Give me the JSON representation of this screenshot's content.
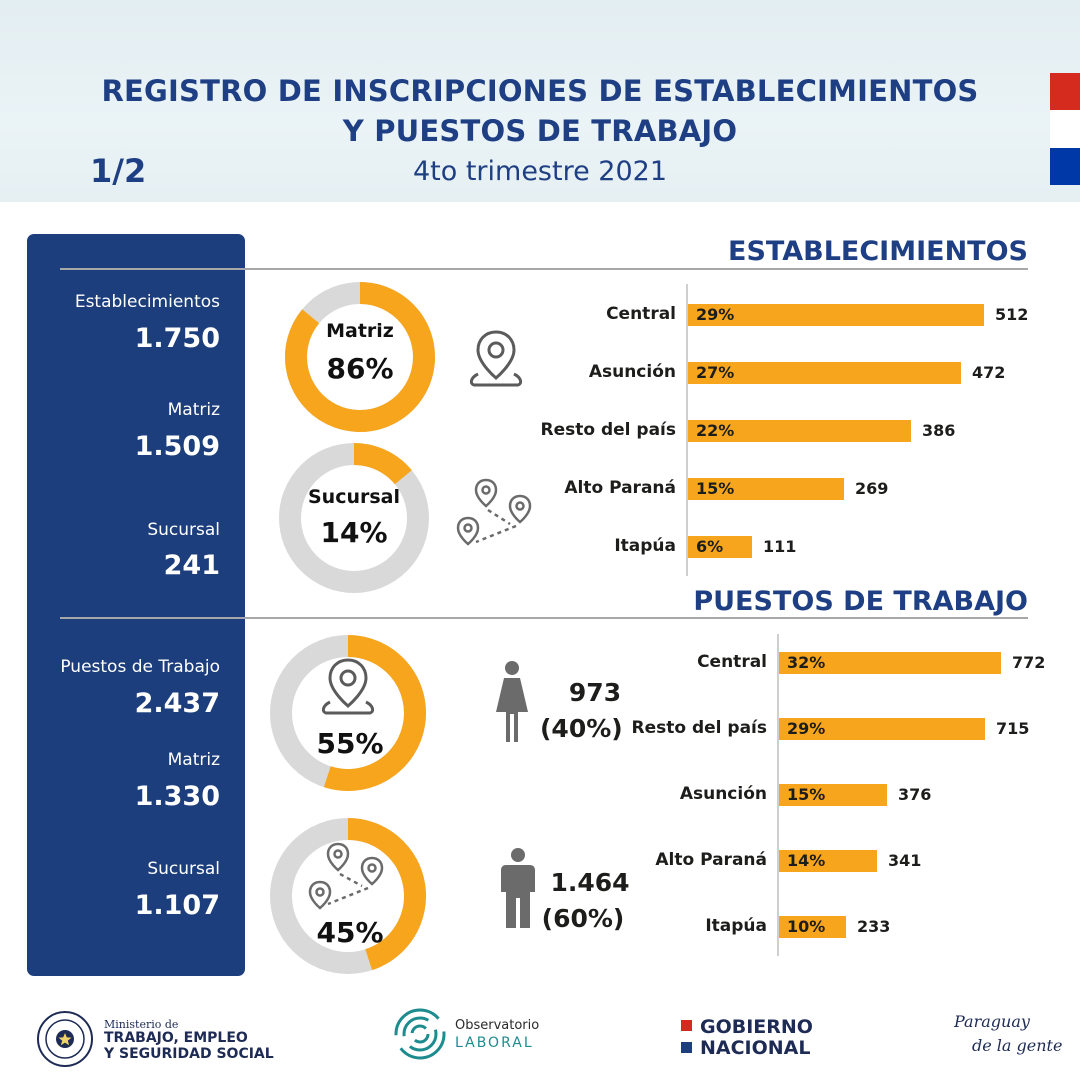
{
  "header": {
    "title_line1": "REGISTRO DE INSCRIPCIONES DE ESTABLECIMIENTOS",
    "title_line2": "Y PUESTOS DE TRABAJO",
    "subtitle": "4to trimestre 2021",
    "page": "1/2"
  },
  "colors": {
    "navy": "#1d3e7c",
    "title_blue": "#1f3f84",
    "orange": "#f7a51d",
    "grey": "#d9d9d9",
    "flag_red": "#d52b1e",
    "flag_white": "#ffffff",
    "flag_blue": "#0038a8"
  },
  "sidebar": {
    "est_label": "Establecimientos",
    "est_value": "1.750",
    "est_matriz_label": "Matriz",
    "est_matriz_value": "1.509",
    "est_sucursal_label": "Sucursal",
    "est_sucursal_value": "241",
    "pt_label": "Puestos de Trabajo",
    "pt_value": "2.437",
    "pt_matriz_label": "Matriz",
    "pt_matriz_value": "1.330",
    "pt_sucursal_label": "Sucursal",
    "pt_sucursal_value": "1.107"
  },
  "sections": {
    "establecimientos": "ESTABLECIMIENTOS",
    "puestos": "PUESTOS DE TRABAJO"
  },
  "donuts": {
    "est_matriz_label": "Matriz",
    "est_matriz_pct": "86%",
    "est_sucursal_label": "Sucursal",
    "est_sucursal_pct": "14%",
    "pt_matriz_pct": "55%",
    "pt_sucursal_pct": "45%"
  },
  "people": {
    "women_value": "973",
    "women_pct": "(40%)",
    "men_value": "1.464",
    "men_pct": "(60%)"
  },
  "chart_data": [
    {
      "type": "pie",
      "labels": [
        "Matriz",
        "Sucursal"
      ],
      "values": [
        86,
        14
      ]
    },
    {
      "type": "pie",
      "labels": [
        "Sucursal",
        "Matriz"
      ],
      "values": [
        14,
        86
      ]
    },
    {
      "type": "pie",
      "labels": [
        "Matriz",
        ""
      ],
      "values": [
        55,
        45
      ]
    },
    {
      "type": "pie",
      "labels": [
        "Sucursal",
        ""
      ],
      "values": [
        45,
        55
      ]
    },
    {
      "type": "bar",
      "title": "ESTABLECIMIENTOS",
      "orientation": "horizontal",
      "categories": [
        "Central",
        "Asunción",
        "Resto del país",
        "Alto Paraná",
        "Itapúa"
      ],
      "values": [
        512,
        472,
        386,
        269,
        111
      ],
      "percent_labels": [
        "29%",
        "27%",
        "22%",
        "15%",
        "6%"
      ],
      "value_labels": [
        "512",
        "472",
        "386",
        "269",
        "111"
      ]
    },
    {
      "type": "bar",
      "title": "PUESTOS DE TRABAJO",
      "orientation": "horizontal",
      "categories": [
        "Central",
        "Resto del país",
        "Asunción",
        "Alto Paraná",
        "Itapúa"
      ],
      "values": [
        772,
        715,
        376,
        341,
        233
      ],
      "percent_labels": [
        "32%",
        "29%",
        "15%",
        "14%",
        "10%"
      ],
      "value_labels": [
        "772",
        "715",
        "376",
        "341",
        "233"
      ]
    },
    {
      "type": "pie",
      "labels": [
        "",
        ""
      ],
      "values": [
        40,
        60
      ],
      "value_labels": [
        "973",
        "1.464"
      ],
      "percent_labels": [
        "(40%)",
        "(60%)"
      ]
    }
  ],
  "footer": {
    "ministry_small": "Ministerio de",
    "ministry_line1": "TRABAJO, EMPLEO",
    "ministry_line2": "Y SEGURIDAD SOCIAL",
    "seal_text": "REPÚBLICA DEL PARAGUAY",
    "observatorio_line1": "Observatorio",
    "observatorio_line2": "LABORAL",
    "gobierno_line1": "GOBIERNO",
    "gobierno_line2": "NACIONAL",
    "slogan_line1": "Paraguay",
    "slogan_line2": "de la gente"
  }
}
